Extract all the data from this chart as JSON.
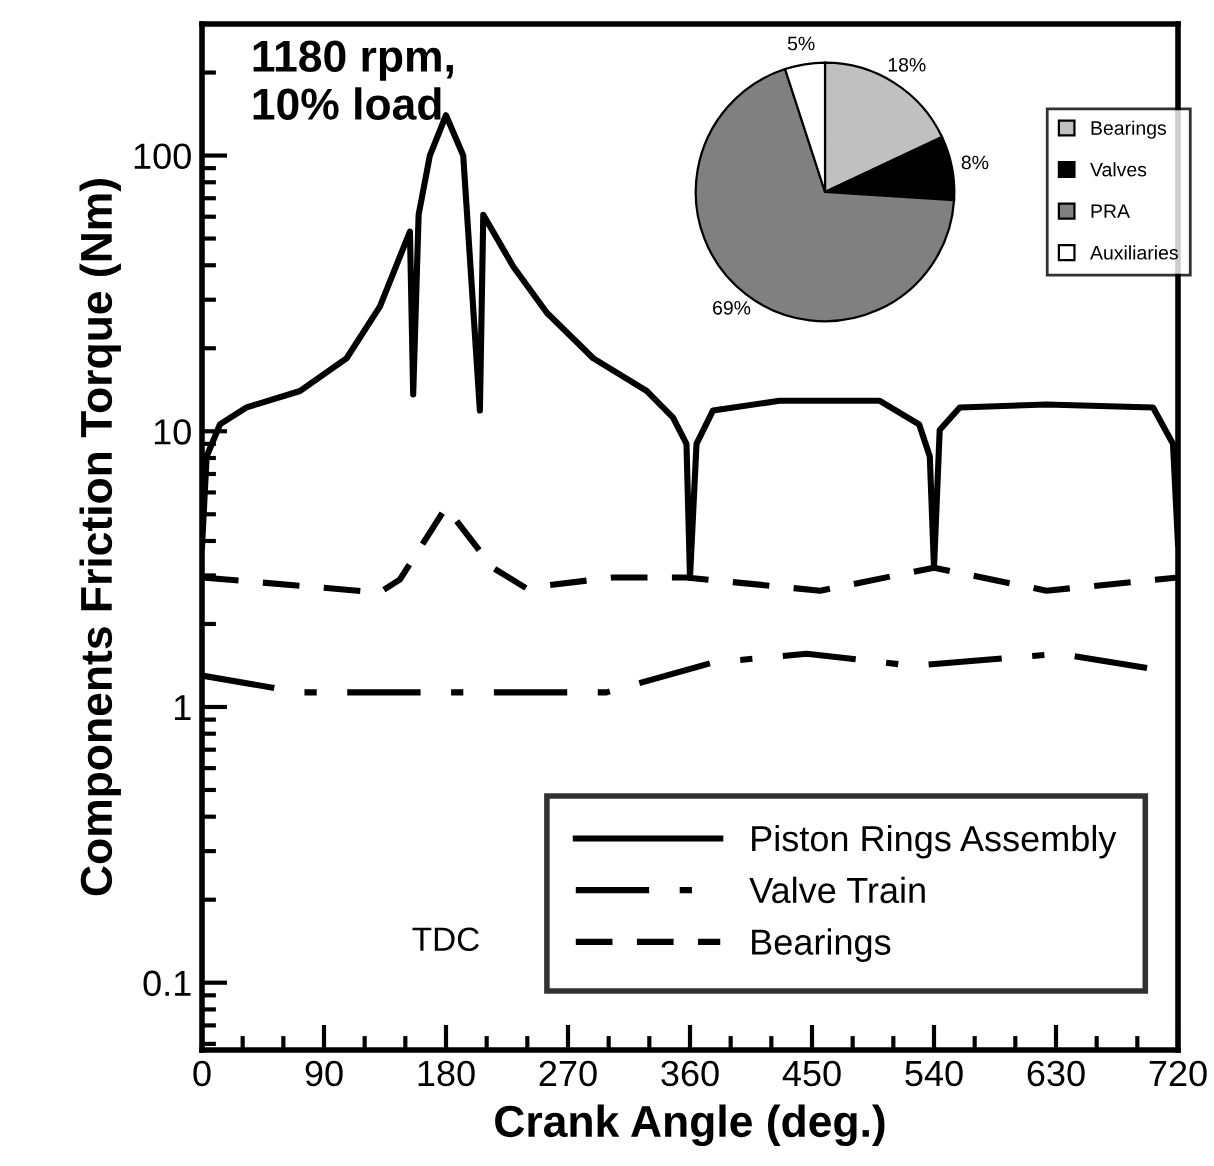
{
  "chart_data": [
    {
      "type": "line",
      "xlabel": "Crank Angle (deg.)",
      "ylabel": "Components Friction Torque (Nm)",
      "log": "y",
      "xlim": [
        0,
        720
      ],
      "xticks": [
        0,
        90,
        180,
        270,
        360,
        450,
        540,
        630,
        720
      ],
      "ylim": [
        0.057,
        300
      ],
      "yticks": [
        0.1,
        1,
        10,
        100
      ],
      "grid": false,
      "legend": "bottom right",
      "marker": "none",
      "annotations": [
        "1180 rpm,\n10% load",
        "TDC"
      ],
      "series": [
        {
          "name": "Piston Rings Assembly",
          "color": "#000000",
          "line_style": "solid",
          "x": [
            0,
            3.4,
            13.3,
            32.9,
            72.3,
            106.7,
            131.3,
            153.4,
            155.8,
            159.8,
            168.1,
            180,
            192.7,
            205,
            207.5,
            229.7,
            254.4,
            288.6,
            328,
            347.5,
            357.4,
            360,
            364.8,
            377,
            426,
            500,
            529,
            536.9,
            540,
            544.2,
            559,
            623,
            701.6,
            716.3,
            720
          ],
          "values": [
            3.8,
            8.1,
            10.6,
            12.2,
            14,
            18.4,
            28.4,
            53,
            13.6,
            61,
            100,
            140,
            100,
            11.9,
            61,
            39.5,
            26.9,
            18.4,
            14,
            11.2,
            9,
            2.95,
            9,
            11.9,
            12.9,
            12.9,
            10.6,
            8.1,
            3.2,
            10.1,
            12.2,
            12.5,
            12.2,
            9,
            3.9
          ]
        },
        {
          "name": "Valve Train",
          "color": "#000000",
          "line_style": "dashdot",
          "x": [
            0,
            72,
            298.5,
            377,
            446,
            524.6,
            632.7,
            711.4,
            720
          ],
          "values": [
            1.3,
            1.13,
            1.13,
            1.45,
            1.56,
            1.41,
            1.56,
            1.35,
            1.33
          ]
        },
        {
          "name": "Bearings",
          "color": "#000000",
          "line_style": "dashed",
          "x": [
            0,
            131,
            146,
            180,
            214.5,
            239,
            303,
            357,
            456,
            540,
            623,
            720
          ],
          "values": [
            2.95,
            2.6,
            2.9,
            5.3,
            3.2,
            2.7,
            2.95,
            2.95,
            2.64,
            3.2,
            2.64,
            2.95
          ]
        }
      ]
    },
    {
      "type": "pie",
      "categories": [
        "Bearings",
        "Valves",
        "PRA",
        "Auxiliaries"
      ],
      "values": [
        18,
        8,
        69,
        5
      ],
      "colors": [
        "#c0c0c0",
        "#000000",
        "#808080",
        "#ffffff"
      ],
      "value_labels": [
        "18%",
        "8%",
        "69%",
        "5%"
      ],
      "legend": "right"
    }
  ]
}
